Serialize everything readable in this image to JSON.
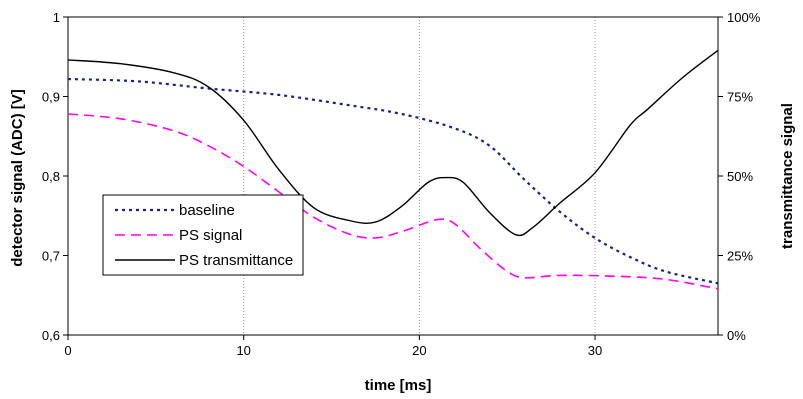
{
  "chart_data": {
    "type": "line",
    "title": "",
    "xlabel": "time [ms]",
    "ylabel": "detector signal (ADC) [V]",
    "y2label": "transmittance signal",
    "xlim": [
      0,
      37
    ],
    "ylim": [
      0.6,
      1.0
    ],
    "y2lim": [
      0,
      100
    ],
    "xticks": [
      "0",
      "10",
      "20",
      "30"
    ],
    "yticks": [
      "0,6",
      "0,7",
      "0,8",
      "0,9",
      "1"
    ],
    "y2ticks": [
      "0%",
      "25%",
      "50%",
      "75%",
      "100%"
    ],
    "grid": "vertical dotted at x ticks",
    "legend_position": "lower-left",
    "series": [
      {
        "name": "baseline",
        "axis": "left",
        "color": "#1a237e",
        "style": "dotted",
        "points": [
          [
            0,
            0.922
          ],
          [
            4,
            0.919
          ],
          [
            8,
            0.91
          ],
          [
            12,
            0.902
          ],
          [
            16,
            0.889
          ],
          [
            19,
            0.878
          ],
          [
            22,
            0.86
          ],
          [
            24,
            0.838
          ],
          [
            26,
            0.795
          ],
          [
            28,
            0.755
          ],
          [
            30,
            0.722
          ],
          [
            32,
            0.698
          ],
          [
            34,
            0.68
          ],
          [
            37,
            0.665
          ]
        ]
      },
      {
        "name": "PS signal",
        "axis": "left",
        "color": "#ff00ff",
        "style": "dashed",
        "points": [
          [
            0,
            0.878
          ],
          [
            3,
            0.872
          ],
          [
            6,
            0.857
          ],
          [
            8,
            0.838
          ],
          [
            10,
            0.812
          ],
          [
            12,
            0.78
          ],
          [
            14,
            0.748
          ],
          [
            16,
            0.727
          ],
          [
            17.5,
            0.722
          ],
          [
            19,
            0.73
          ],
          [
            21,
            0.745
          ],
          [
            22,
            0.74
          ],
          [
            23.5,
            0.708
          ],
          [
            25,
            0.68
          ],
          [
            26,
            0.672
          ],
          [
            28,
            0.675
          ],
          [
            31,
            0.674
          ],
          [
            34,
            0.67
          ],
          [
            37,
            0.658
          ]
        ]
      },
      {
        "name": "PS transmittance",
        "axis": "right",
        "color": "#000000",
        "style": "solid",
        "points": [
          [
            0,
            86.5
          ],
          [
            3,
            85.3
          ],
          [
            6,
            82.5
          ],
          [
            8,
            78.0
          ],
          [
            10,
            67.5
          ],
          [
            12,
            52.0
          ],
          [
            14,
            40.0
          ],
          [
            16,
            36.0
          ],
          [
            17.5,
            35.5
          ],
          [
            19,
            40.5
          ],
          [
            20.5,
            48.0
          ],
          [
            21.5,
            49.5
          ],
          [
            22.5,
            48.0
          ],
          [
            24,
            38.5
          ],
          [
            25.5,
            31.5
          ],
          [
            26.5,
            34.0
          ],
          [
            28,
            41.5
          ],
          [
            30,
            51.0
          ],
          [
            32,
            66.0
          ],
          [
            33,
            71.0
          ],
          [
            35,
            81.0
          ],
          [
            37,
            89.5
          ]
        ]
      }
    ]
  }
}
